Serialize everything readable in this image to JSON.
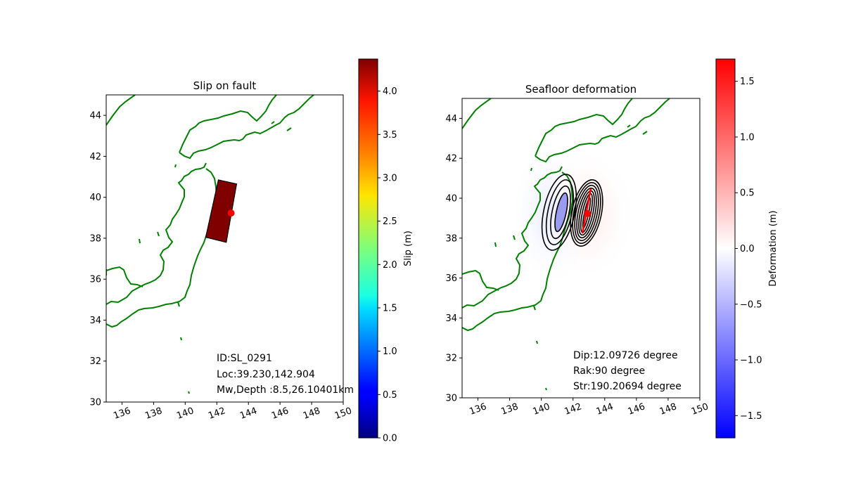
{
  "chart_data": [
    {
      "type": "map",
      "title": "Slip on fault",
      "xlim": [
        135,
        150
      ],
      "ylim": [
        30,
        45
      ],
      "xticks": [
        136,
        138,
        140,
        142,
        144,
        146,
        148,
        150
      ],
      "yticks": [
        30,
        32,
        34,
        36,
        38,
        40,
        42,
        44
      ],
      "coastline_color": "#008000",
      "fault_patch": {
        "corners": [
          [
            142.1,
            40.85
          ],
          [
            143.25,
            40.65
          ],
          [
            142.6,
            37.8
          ],
          [
            141.3,
            38.05
          ]
        ],
        "slip_m": 4.37,
        "color": "#800000"
      },
      "epicenter": {
        "lon": 142.904,
        "lat": 39.23,
        "color": "#ff0000"
      },
      "annotations": [
        "ID:SL_0291",
        "Loc:39.230,142.904",
        "Mw,Depth :8.5,26.10401km"
      ],
      "colorbar": {
        "label": "Slip (m)",
        "range": [
          0,
          4.37
        ],
        "ticks": [
          "0.0",
          "0.5",
          "1.0",
          "1.5",
          "2.0",
          "2.5",
          "3.0",
          "3.5",
          "4.0"
        ],
        "tick_values": [
          0,
          0.5,
          1.0,
          1.5,
          2.0,
          2.5,
          3.0,
          3.5,
          4.0
        ],
        "colormap": "jet"
      }
    },
    {
      "type": "map",
      "title": "Seafloor deformation",
      "xlim": [
        135,
        150
      ],
      "ylim": [
        30,
        45
      ],
      "xticks": [
        136,
        138,
        140,
        142,
        144,
        146,
        148,
        150
      ],
      "yticks": [
        30,
        32,
        34,
        36,
        38,
        40,
        42,
        44
      ],
      "coastline_color": "#008000",
      "subsidence_lobe": {
        "lon": 141.25,
        "lat": 39.05,
        "min_m": -0.8
      },
      "uplift_lobe": {
        "lon": 142.85,
        "lat": 39.2,
        "max_m": 1.7
      },
      "strike_line_color": "#ff0000",
      "epicenter": {
        "lon": 142.904,
        "lat": 39.23,
        "color": "#ff0000"
      },
      "annotations": [
        "Dip:12.09726 degree",
        "Rak:90 degree",
        "Str:190.20694 degree"
      ],
      "colorbar": {
        "label": "Deformation (m)",
        "range": [
          -1.7,
          1.7
        ],
        "ticks": [
          "−1.5",
          "−1.0",
          "−0.5",
          "0.0",
          "0.5",
          "1.0",
          "1.5"
        ],
        "tick_values": [
          -1.5,
          -1.0,
          -0.5,
          0.0,
          0.5,
          1.0,
          1.5
        ],
        "colormap": "bwr"
      }
    }
  ]
}
